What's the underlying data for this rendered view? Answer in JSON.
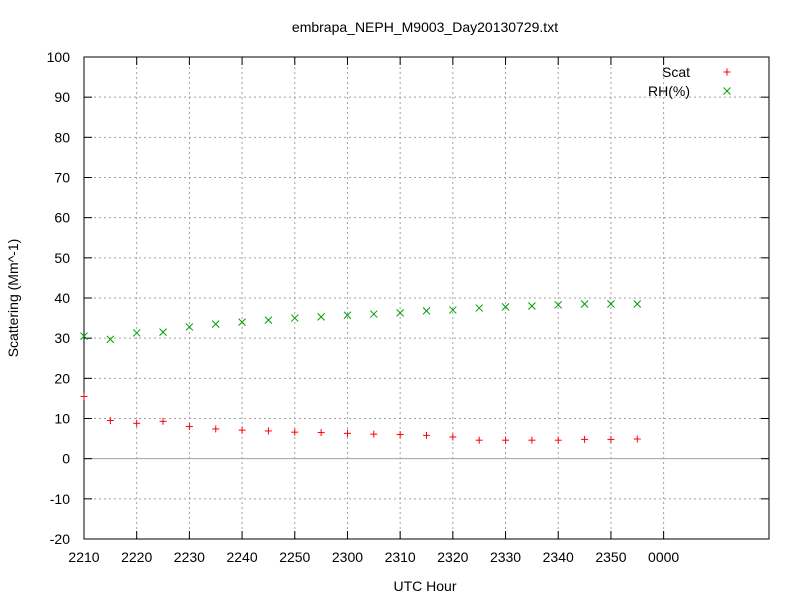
{
  "chart_data": {
    "type": "scatter",
    "title": "embrapa_NEPH_M9003_Day20130729.txt",
    "xlabel": "UTC Hour",
    "ylabel": "Scattering (Mm^-1)",
    "xlim": [
      2210,
      2420
    ],
    "ylim": [
      -20,
      100
    ],
    "grid": true,
    "legend_position": "top-right",
    "x_ticks": [
      "2210",
      "2220",
      "2230",
      "2240",
      "2250",
      "2300",
      "2310",
      "2320",
      "2330",
      "2340",
      "2350",
      "0000"
    ],
    "y_ticks": [
      -20,
      -10,
      0,
      10,
      20,
      30,
      40,
      50,
      60,
      70,
      80,
      90,
      100
    ],
    "x": [
      "2210",
      "2215",
      "2220",
      "2225",
      "2230",
      "2235",
      "2240",
      "2245",
      "2250",
      "2255",
      "2300",
      "2305",
      "2310",
      "2315",
      "2320",
      "2325",
      "2330",
      "2335",
      "2340",
      "2345",
      "2350",
      "2355"
    ],
    "series": [
      {
        "name": "Scat",
        "marker": "+",
        "color": "#ff0000",
        "values": [
          15.5,
          9.5,
          8.8,
          9.3,
          8.0,
          7.4,
          7.1,
          6.9,
          6.6,
          6.5,
          6.3,
          6.1,
          6.0,
          5.8,
          5.4,
          4.6,
          4.6,
          4.6,
          4.6,
          4.8,
          4.8,
          4.9
        ]
      },
      {
        "name": "RH(%)",
        "marker": "x",
        "color": "#00a000",
        "values": [
          30.5,
          29.7,
          31.3,
          31.5,
          32.8,
          33.5,
          34.0,
          34.5,
          35.0,
          35.3,
          35.7,
          36.0,
          36.3,
          36.8,
          37.0,
          37.5,
          37.8,
          38.0,
          38.3,
          38.5,
          38.5,
          38.5
        ]
      }
    ]
  }
}
